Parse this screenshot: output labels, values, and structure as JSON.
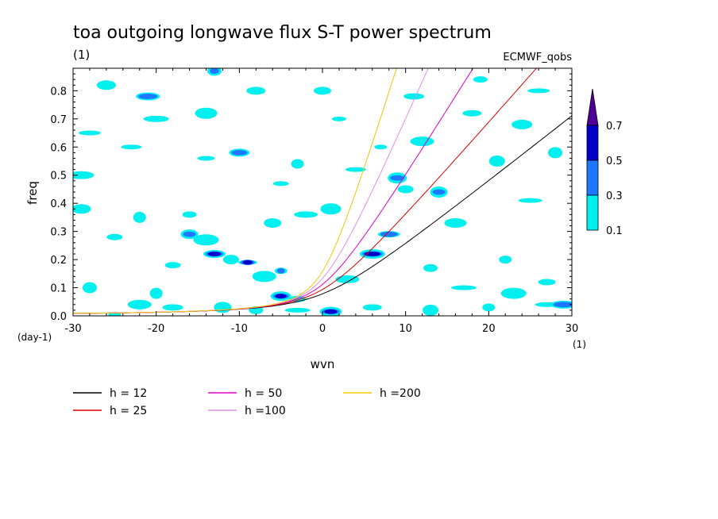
{
  "chart_data": {
    "type": "line",
    "title": "toa outgoing longwave flux S-T power spectrum",
    "subtitle": "(1)",
    "dataset_label": "ECMWF_qobs",
    "xlabel": "wvn",
    "ylabel": "freq",
    "x_unit": "(1)",
    "y_unit": "(day-1)",
    "xlim": [
      -30,
      30
    ],
    "ylim": [
      0,
      0.88
    ],
    "x_ticks": [
      "-30",
      "-20",
      "-10",
      "0",
      "10",
      "20",
      "30"
    ],
    "y_ticks": [
      "0.0",
      "0.1",
      "0.2",
      "0.3",
      "0.4",
      "0.5",
      "0.6",
      "0.7",
      "0.8"
    ],
    "grid": false,
    "series": [
      {
        "name": "h = 12",
        "color": "#000000",
        "h": 12
      },
      {
        "name": "h = 25",
        "color": "#e00000",
        "h": 25
      },
      {
        "name": "h = 50",
        "color": "#e000c0",
        "h": 50
      },
      {
        "name": "h =100",
        "color": "#e090e0",
        "h": 100
      },
      {
        "name": "h =200",
        "color": "#f0c800",
        "h": 200
      }
    ],
    "colorbar": {
      "levels": [
        "0.1",
        "0.3",
        "0.5",
        "0.7"
      ],
      "colors": [
        "#00f0f0",
        "#1e78ff",
        "#0000c8",
        "#500096"
      ]
    },
    "contour_blobs": [
      {
        "x": -25,
        "y": 0.005,
        "level": 0
      },
      {
        "x": -22,
        "y": 0.04,
        "level": 0
      },
      {
        "x": -18,
        "y": 0.03,
        "level": 0
      },
      {
        "x": -12,
        "y": 0.03,
        "level": 0
      },
      {
        "x": -8,
        "y": 0.02,
        "level": 0
      },
      {
        "x": -3,
        "y": 0.02,
        "level": 0
      },
      {
        "x": 1,
        "y": 0.015,
        "level": 2
      },
      {
        "x": 6,
        "y": 0.03,
        "level": 0
      },
      {
        "x": 13,
        "y": 0.02,
        "level": 0
      },
      {
        "x": 20,
        "y": 0.03,
        "level": 0
      },
      {
        "x": 27,
        "y": 0.04,
        "level": 0
      },
      {
        "x": -5,
        "y": 0.07,
        "level": 2
      },
      {
        "x": -3,
        "y": 0.06,
        "level": 0
      },
      {
        "x": -28,
        "y": 0.1,
        "level": 0
      },
      {
        "x": -29,
        "y": 0.5,
        "level": 0
      },
      {
        "x": -28,
        "y": 0.65,
        "level": 0
      },
      {
        "x": -29,
        "y": 0.38,
        "level": 0
      },
      {
        "x": -25,
        "y": 0.28,
        "level": 0
      },
      {
        "x": -22,
        "y": 0.35,
        "level": 0
      },
      {
        "x": -21,
        "y": 0.78,
        "level": 1
      },
      {
        "x": -23,
        "y": 0.6,
        "level": 0
      },
      {
        "x": -16,
        "y": 0.29,
        "level": 1
      },
      {
        "x": -16,
        "y": 0.36,
        "level": 0
      },
      {
        "x": -14,
        "y": 0.27,
        "level": 0
      },
      {
        "x": -13,
        "y": 0.22,
        "level": 2
      },
      {
        "x": -9,
        "y": 0.19,
        "level": 2
      },
      {
        "x": -11,
        "y": 0.2,
        "level": 0
      },
      {
        "x": -5,
        "y": 0.16,
        "level": 1
      },
      {
        "x": -7,
        "y": 0.14,
        "level": 0
      },
      {
        "x": -10,
        "y": 0.58,
        "level": 1
      },
      {
        "x": -14,
        "y": 0.56,
        "level": 0
      },
      {
        "x": -13,
        "y": 0.87,
        "level": 1
      },
      {
        "x": -20,
        "y": 0.7,
        "level": 0
      },
      {
        "x": -14,
        "y": 0.72,
        "level": 0
      },
      {
        "x": -8,
        "y": 0.8,
        "level": 0
      },
      {
        "x": -5,
        "y": 0.47,
        "level": 0
      },
      {
        "x": -3,
        "y": 0.54,
        "level": 0
      },
      {
        "x": -2,
        "y": 0.36,
        "level": 0
      },
      {
        "x": 1,
        "y": 0.38,
        "level": 0
      },
      {
        "x": 0,
        "y": 0.8,
        "level": 0
      },
      {
        "x": 2,
        "y": 0.7,
        "level": 0
      },
      {
        "x": 6,
        "y": 0.22,
        "level": 2
      },
      {
        "x": 8,
        "y": 0.29,
        "level": 1
      },
      {
        "x": 9,
        "y": 0.49,
        "level": 1
      },
      {
        "x": 10,
        "y": 0.45,
        "level": 0
      },
      {
        "x": 7,
        "y": 0.6,
        "level": 0
      },
      {
        "x": 12,
        "y": 0.62,
        "level": 0
      },
      {
        "x": 11,
        "y": 0.78,
        "level": 0
      },
      {
        "x": 14,
        "y": 0.44,
        "level": 1
      },
      {
        "x": 13,
        "y": 0.17,
        "level": 0
      },
      {
        "x": 17,
        "y": 0.1,
        "level": 0
      },
      {
        "x": 16,
        "y": 0.33,
        "level": 0
      },
      {
        "x": 18,
        "y": 0.72,
        "level": 0
      },
      {
        "x": 21,
        "y": 0.55,
        "level": 0
      },
      {
        "x": 22,
        "y": 0.2,
        "level": 0
      },
      {
        "x": 25,
        "y": 0.41,
        "level": 0
      },
      {
        "x": 24,
        "y": 0.68,
        "level": 0
      },
      {
        "x": 27,
        "y": 0.12,
        "level": 0
      },
      {
        "x": 28,
        "y": 0.58,
        "level": 0
      },
      {
        "x": 29,
        "y": 0.04,
        "level": 1
      },
      {
        "x": 26,
        "y": 0.8,
        "level": 0
      },
      {
        "x": -26,
        "y": 0.82,
        "level": 0
      },
      {
        "x": -18,
        "y": 0.18,
        "level": 0
      },
      {
        "x": -20,
        "y": 0.08,
        "level": 0
      },
      {
        "x": 3,
        "y": 0.13,
        "level": 0
      },
      {
        "x": 4,
        "y": 0.52,
        "level": 0
      },
      {
        "x": -6,
        "y": 0.33,
        "level": 0
      },
      {
        "x": 19,
        "y": 0.84,
        "level": 0
      },
      {
        "x": 23,
        "y": 0.08,
        "level": 0
      }
    ]
  },
  "legend": {
    "items": [
      "h = 12",
      "h = 25",
      "h = 50",
      "h =100",
      "h =200"
    ]
  }
}
